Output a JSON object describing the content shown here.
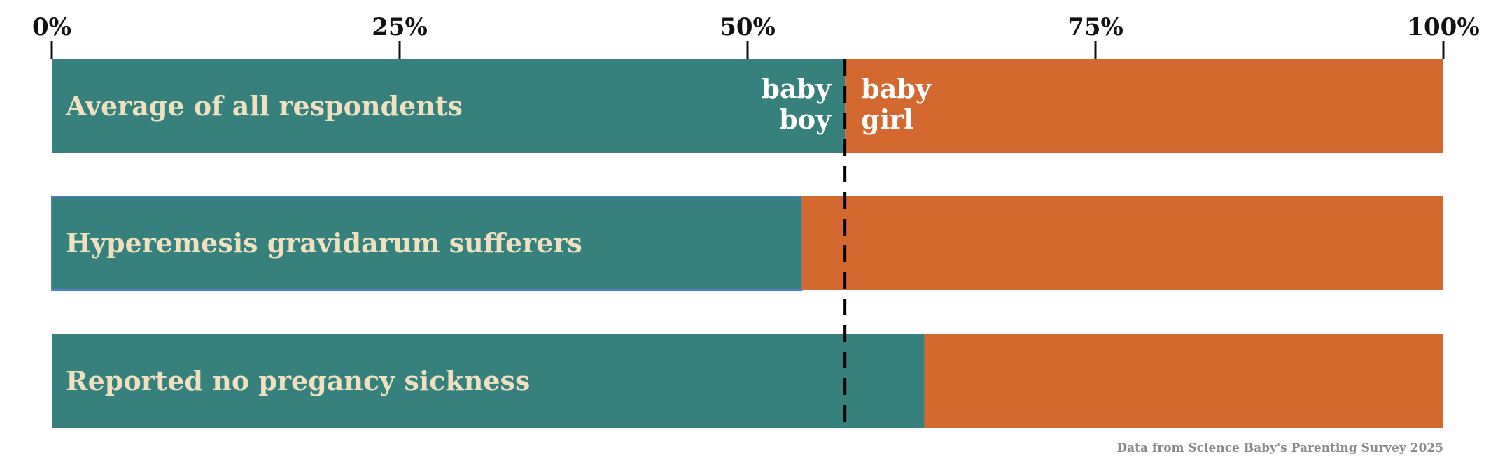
{
  "chart_data": {
    "type": "bar",
    "orientation": "horizontal",
    "stacked": true,
    "xlim": [
      0,
      100
    ],
    "x_ticks": [
      0,
      25,
      50,
      75,
      100
    ],
    "x_tick_labels": [
      "0%",
      "25%",
      "50%",
      "75%",
      "100%"
    ],
    "axis_position": "top",
    "grid": false,
    "categories": [
      "Average of all respondents",
      "Hyperemesis gravidarum sufferers",
      "Reported no pregancy sickness"
    ],
    "series": [
      {
        "name": "baby boy",
        "values": [
          57.0,
          53.9,
          62.7
        ],
        "color": "#36807d"
      },
      {
        "name": "baby girl",
        "values": [
          43.0,
          46.1,
          37.3
        ],
        "color": "#d4692f"
      }
    ],
    "segment_labels": [
      "baby\nboy",
      "baby\ngirl"
    ],
    "reference_line": {
      "value": 57.0,
      "style": "dashed"
    },
    "highlight_outline_color": "#4d7fd6",
    "source": "Data from Science Baby's Parenting Survey 2025"
  }
}
